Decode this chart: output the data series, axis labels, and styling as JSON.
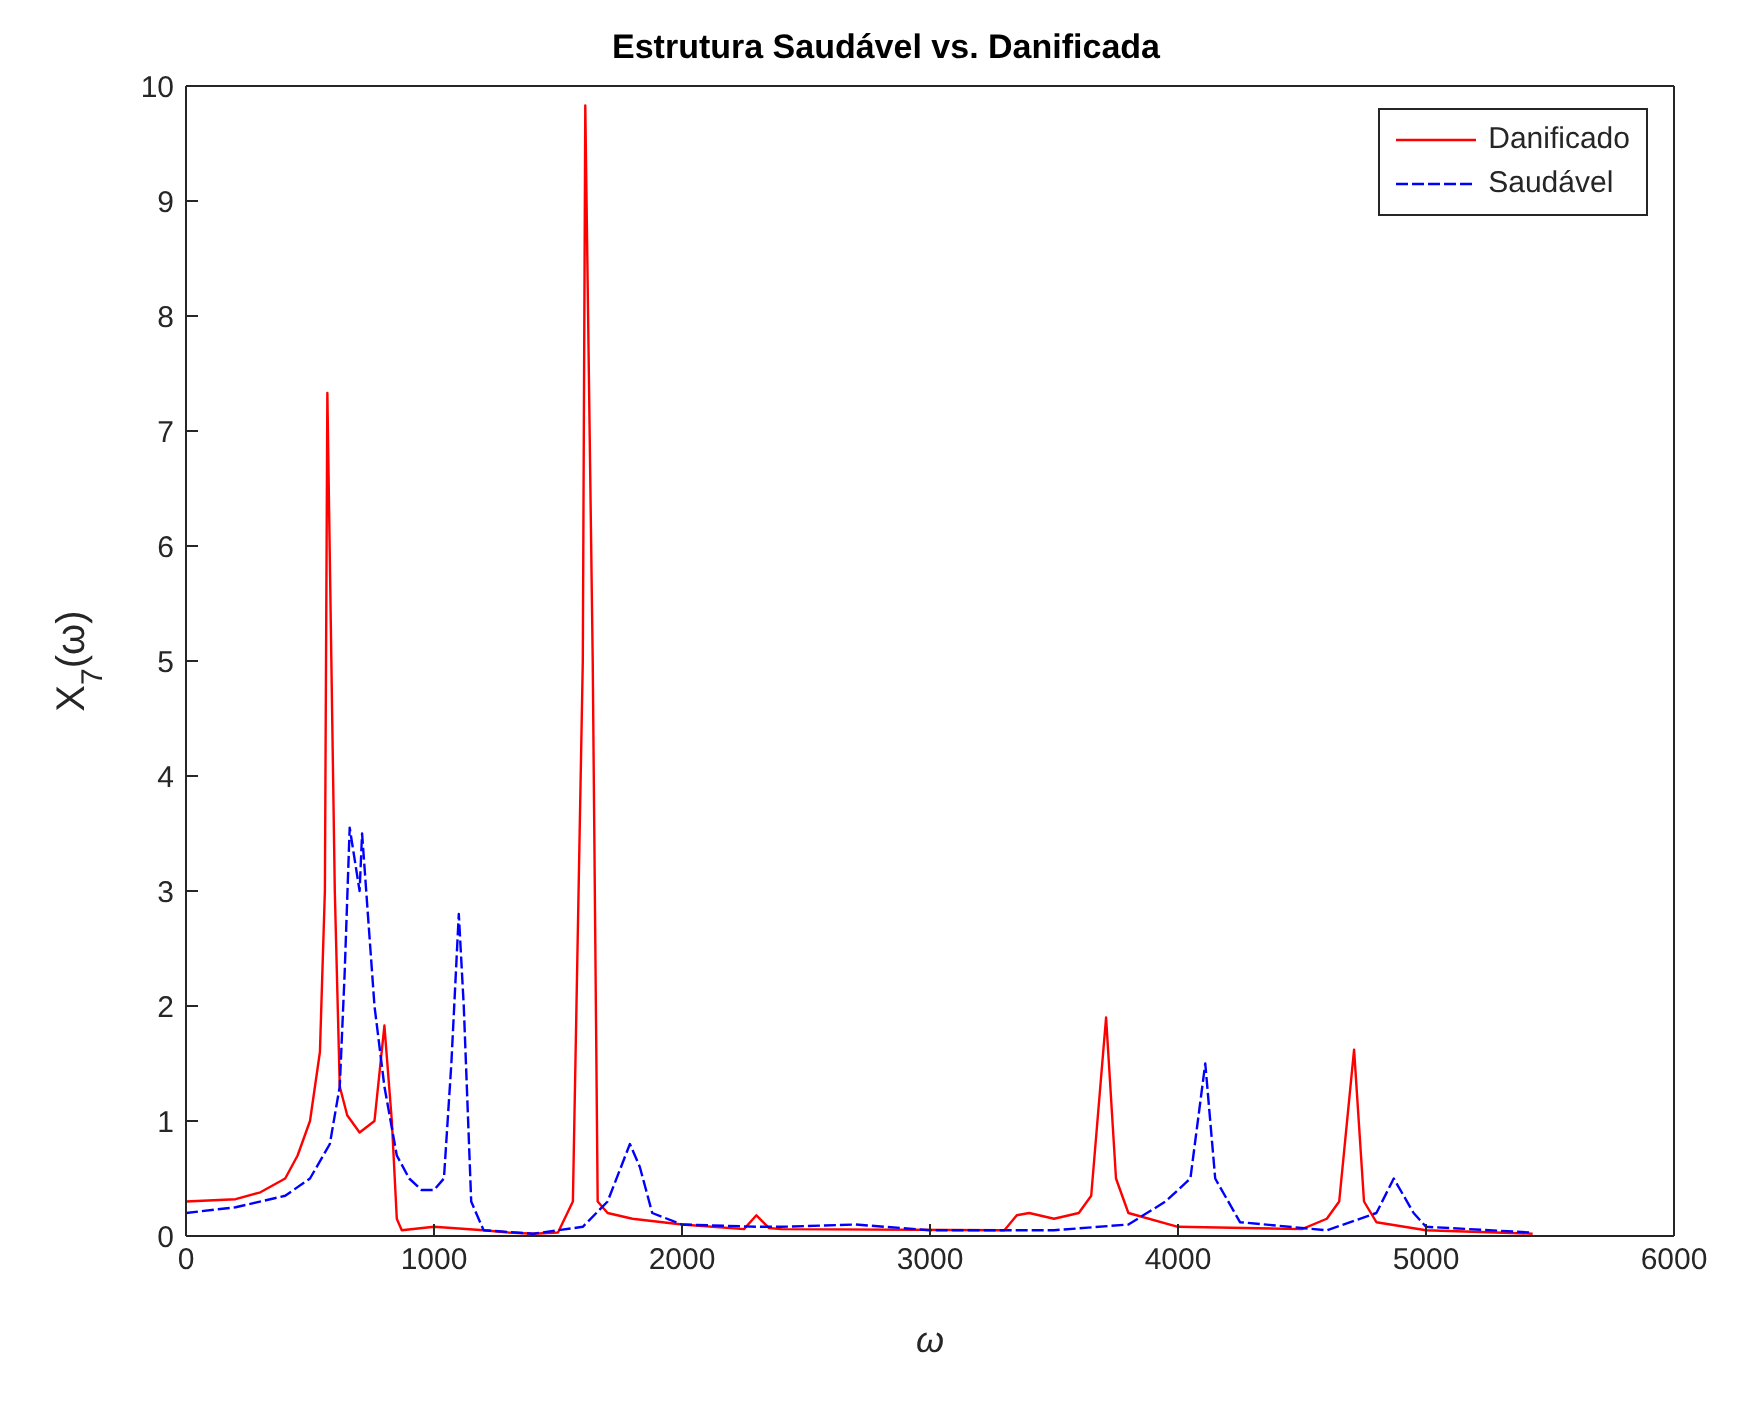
{
  "chart_data": {
    "type": "line",
    "title": "Estrutura Saudável vs. Danificada",
    "xlabel": "ω",
    "ylabel": "X$_{7}$(ω)",
    "xlim": [
      0,
      6000
    ],
    "xticks": [
      0,
      1000,
      2000,
      3000,
      4000,
      5000,
      6000
    ],
    "ylim": [
      0,
      10
    ],
    "yticks": [
      0,
      1,
      2,
      3,
      4,
      5,
      6,
      7,
      8,
      9,
      10
    ],
    "legend": "top right",
    "marker": "none",
    "series": [
      {
        "name": "Danificado",
        "color": "#ff0000",
        "line_style": "solid",
        "x": [
          0,
          200,
          300,
          400,
          450,
          500,
          540,
          560,
          570,
          600,
          620,
          650,
          700,
          760,
          800,
          830,
          850,
          870,
          1000,
          1200,
          1300,
          1400,
          1500,
          1560,
          1600,
          1610,
          1640,
          1660,
          1700,
          1800,
          2000,
          2250,
          2300,
          2350,
          2400,
          3300,
          3350,
          3400,
          3500,
          3600,
          3650,
          3710,
          3750,
          3800,
          4000,
          4500,
          4600,
          4650,
          4710,
          4750,
          4800,
          5000,
          5430
        ],
        "values": [
          0.3,
          0.32,
          0.38,
          0.5,
          0.7,
          1.0,
          1.6,
          3,
          7.33,
          3,
          1.3,
          1.05,
          0.9,
          1.0,
          1.83,
          1.0,
          0.15,
          0.05,
          0.08,
          0.05,
          0.03,
          0.02,
          0.03,
          0.3,
          5,
          9.83,
          5,
          0.3,
          0.2,
          0.15,
          0.1,
          0.06,
          0.18,
          0.07,
          0.06,
          0.05,
          0.18,
          0.2,
          0.15,
          0.2,
          0.35,
          1.9,
          0.5,
          0.2,
          0.08,
          0.06,
          0.15,
          0.3,
          1.62,
          0.3,
          0.12,
          0.05,
          0.02
        ]
      },
      {
        "name": "Saudável",
        "color": "#0000ff",
        "line_style": "dashed",
        "x": [
          0,
          200,
          400,
          500,
          580,
          620,
          640,
          660,
          700,
          710,
          760,
          800,
          850,
          900,
          950,
          1000,
          1040,
          1070,
          1100,
          1120,
          1150,
          1200,
          1400,
          1500,
          1600,
          1700,
          1790,
          1830,
          1880,
          2000,
          2300,
          2400,
          2700,
          3000,
          3500,
          3800,
          3950,
          4050,
          4110,
          4150,
          4250,
          4600,
          4800,
          4870,
          4950,
          5000,
          5430
        ],
        "values": [
          0.2,
          0.25,
          0.35,
          0.5,
          0.8,
          1.3,
          2.3,
          3.55,
          3.0,
          3.5,
          2.0,
          1.3,
          0.7,
          0.5,
          0.4,
          0.4,
          0.5,
          1.5,
          2.8,
          2.0,
          0.3,
          0.05,
          0.02,
          0.05,
          0.08,
          0.3,
          0.8,
          0.6,
          0.2,
          0.1,
          0.08,
          0.08,
          0.1,
          0.05,
          0.05,
          0.1,
          0.3,
          0.5,
          1.5,
          0.5,
          0.12,
          0.05,
          0.2,
          0.5,
          0.2,
          0.08,
          0.03
        ]
      }
    ]
  }
}
